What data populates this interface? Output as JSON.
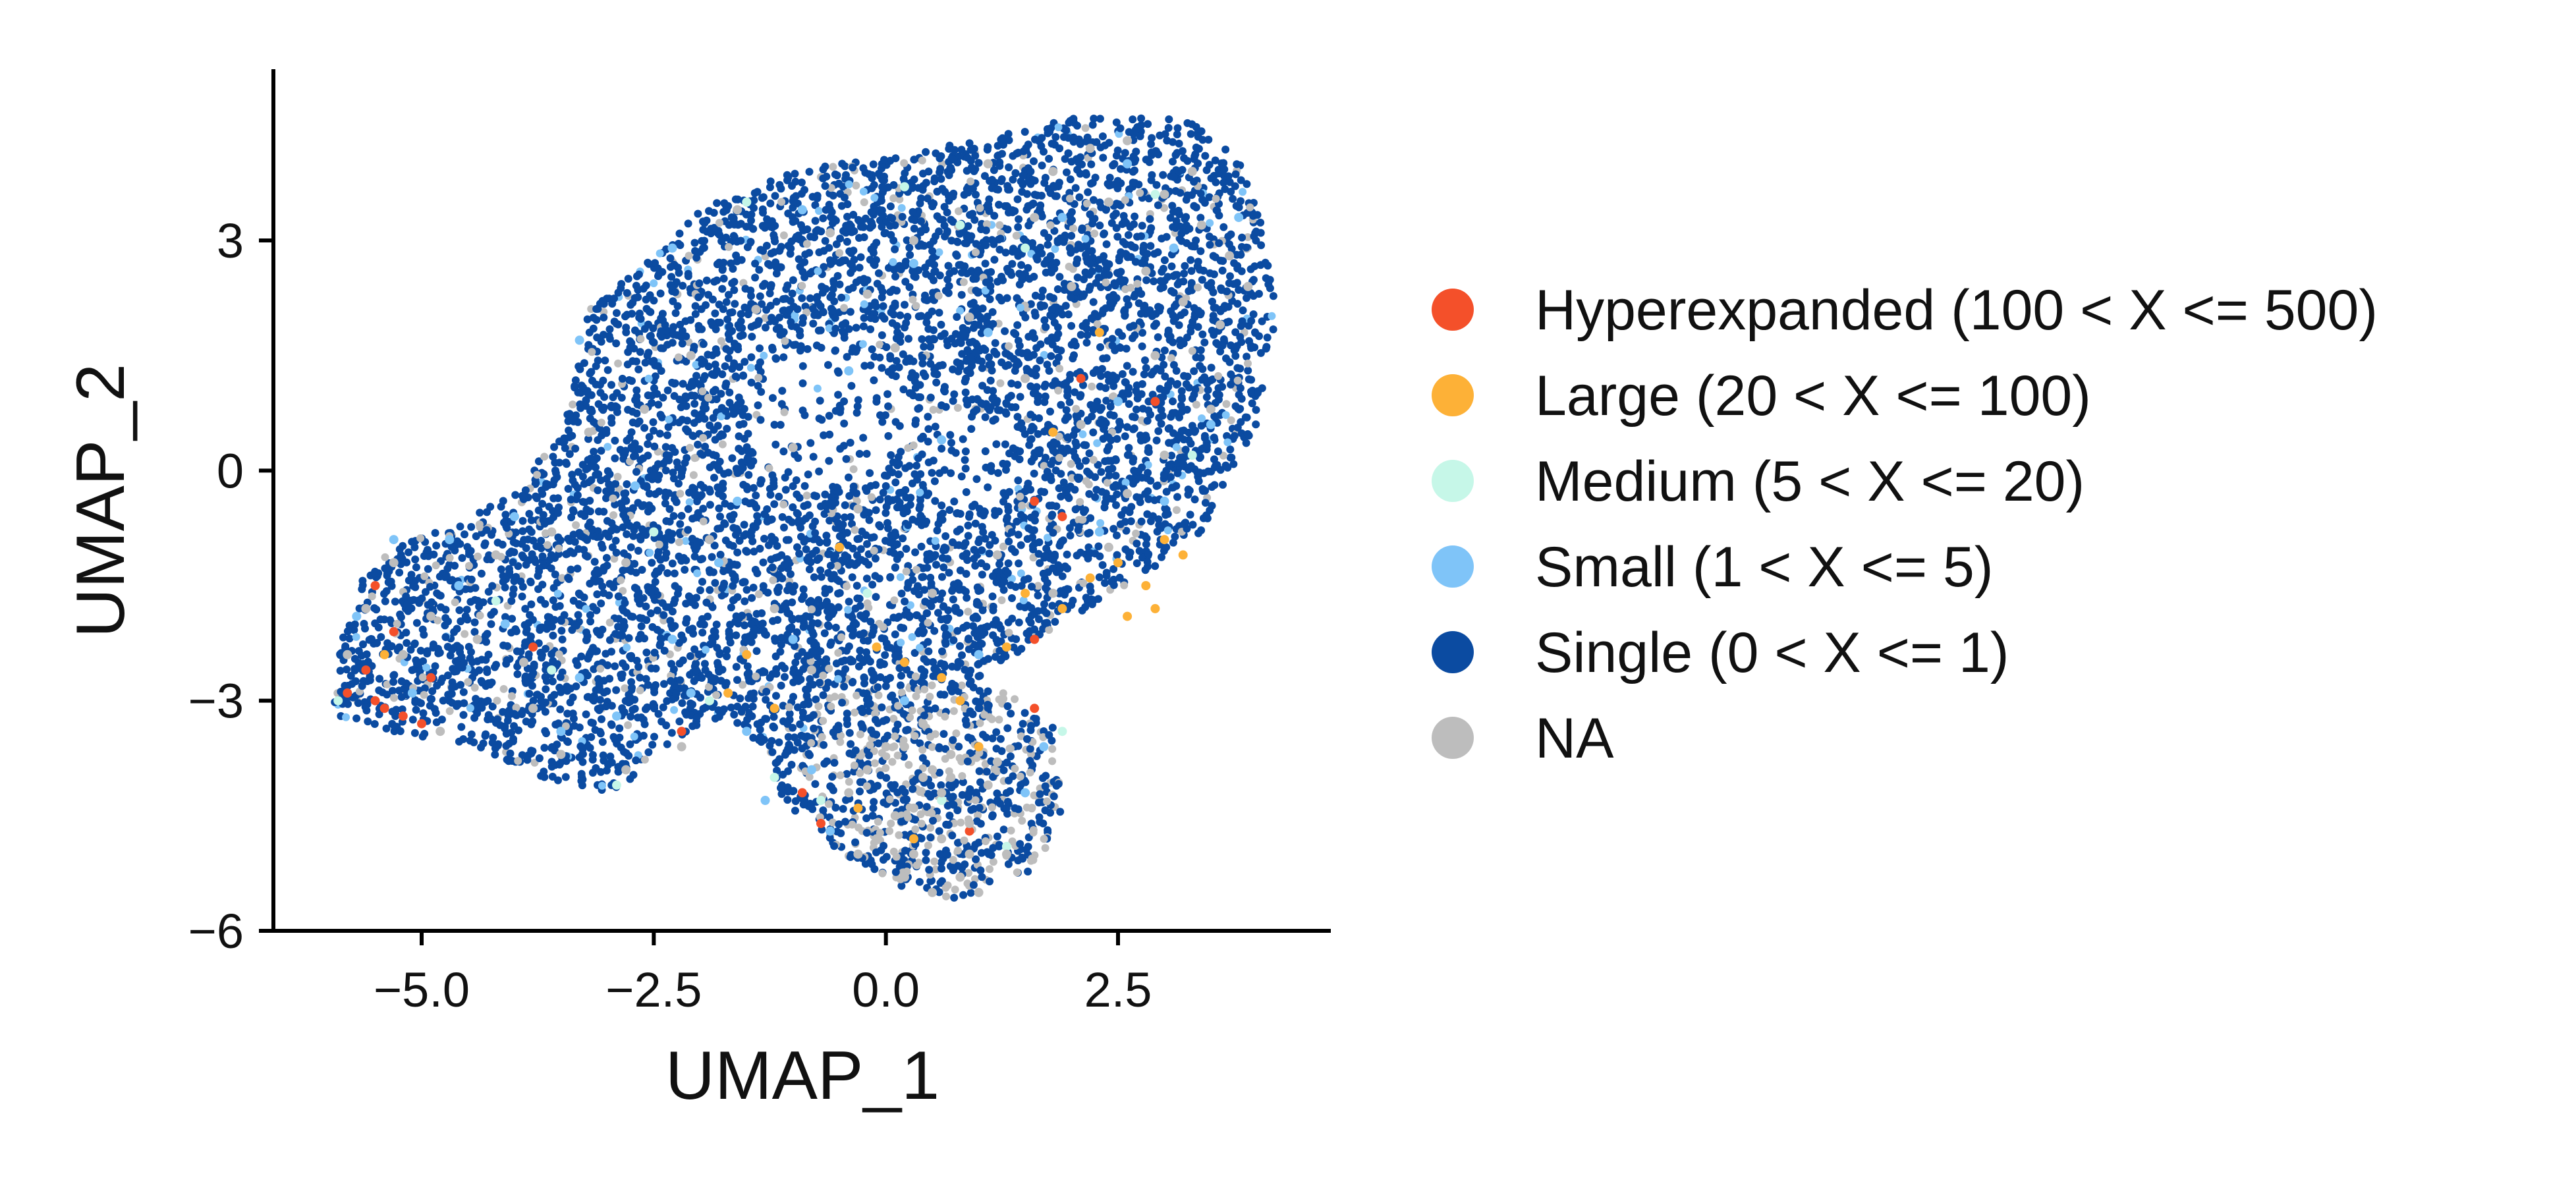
{
  "chart_data": {
    "type": "scatter",
    "title": "",
    "xlabel": "UMAP_1",
    "ylabel": "UMAP_2",
    "xlim": [
      -6.5,
      4.9
    ],
    "ylim": [
      -6.1,
      5.2
    ],
    "xticks": [
      -5.0,
      -2.5,
      0.0,
      2.5
    ],
    "xtick_labels": [
      "−5.0",
      "−2.5",
      "0.0",
      "2.5"
    ],
    "yticks": [
      -6,
      -3,
      0,
      3
    ],
    "ytick_labels": [
      "−6",
      "−3",
      "0",
      "3"
    ],
    "grid": false,
    "legend_position": "right",
    "legend": [
      {
        "label": "Hyperexpanded (100 < X <= 500)",
        "color": "#F4502A"
      },
      {
        "label": "Large (20 < X <= 100)",
        "color": "#FDB137"
      },
      {
        "label": "Medium (5 < X <= 20)",
        "color": "#C6F7E8"
      },
      {
        "label": "Small (1 < X <= 5)",
        "color": "#7FC4F8"
      },
      {
        "label": "Single (0 < X <= 1)",
        "color": "#0B4BA1"
      },
      {
        "label": "NA",
        "color": "#BDBDBD"
      }
    ],
    "series": [
      {
        "name": "Hyperexpanded (100 < X <= 500)",
        "color": "#F4502A",
        "points": [
          [
            -5.5,
            -1.5
          ],
          [
            -5.3,
            -2.1
          ],
          [
            -5.6,
            -2.6
          ],
          [
            -5.4,
            -3.1
          ],
          [
            -5.8,
            -2.9
          ],
          [
            -5.2,
            -3.2
          ],
          [
            -4.9,
            -2.7
          ],
          [
            -3.8,
            -2.3
          ],
          [
            -2.2,
            -3.4
          ],
          [
            -0.9,
            -4.2
          ],
          [
            -0.7,
            -4.6
          ],
          [
            0.9,
            -4.7
          ],
          [
            1.6,
            -3.1
          ],
          [
            1.6,
            -2.2
          ],
          [
            1.9,
            -0.6
          ],
          [
            2.1,
            1.2
          ],
          [
            2.9,
            0.9
          ],
          [
            1.6,
            -0.4
          ],
          [
            -5.5,
            -3.0
          ],
          [
            -5.0,
            -3.3
          ]
        ]
      },
      {
        "name": "Large (20 < X <= 100)",
        "color": "#FDB137",
        "points": [
          [
            2.5,
            -1.2
          ],
          [
            3.2,
            -1.1
          ],
          [
            2.8,
            -1.5
          ],
          [
            1.9,
            -1.8
          ],
          [
            1.3,
            -2.3
          ],
          [
            0.6,
            -2.7
          ],
          [
            -0.1,
            -2.3
          ],
          [
            -1.7,
            -2.9
          ],
          [
            -1.2,
            -3.1
          ],
          [
            -0.3,
            -4.4
          ],
          [
            0.3,
            -4.8
          ],
          [
            1.0,
            -3.6
          ],
          [
            -5.4,
            -2.4
          ],
          [
            2.6,
            -1.9
          ],
          [
            3.0,
            -0.9
          ],
          [
            2.2,
            -1.4
          ],
          [
            1.5,
            -1.6
          ],
          [
            -0.5,
            -1.0
          ],
          [
            1.8,
            0.5
          ],
          [
            0.8,
            -3.0
          ],
          [
            2.3,
            1.8
          ],
          [
            2.9,
            -1.8
          ],
          [
            -1.5,
            -2.4
          ],
          [
            0.2,
            -2.5
          ]
        ]
      },
      {
        "name": "Medium (5 < X <= 20)",
        "color": "#C6F7E8",
        "points": [
          [
            -5.9,
            -3.0
          ],
          [
            -1.5,
            3.5
          ],
          [
            0.8,
            3.2
          ],
          [
            1.5,
            2.9
          ],
          [
            -1.9,
            -3.0
          ],
          [
            0.6,
            -4.3
          ],
          [
            -1.2,
            -4.0
          ],
          [
            -2.5,
            -0.8
          ],
          [
            -3.6,
            -2.6
          ],
          [
            1.9,
            -3.4
          ],
          [
            2.9,
            3.6
          ],
          [
            -0.2,
            -1.6
          ],
          [
            1.3,
            -4.9
          ],
          [
            -4.2,
            -1.7
          ],
          [
            -2.9,
            -4.1
          ],
          [
            0.2,
            3.7
          ],
          [
            3.3,
            0.2
          ],
          [
            -0.7,
            -4.3
          ]
        ]
      },
      {
        "name": "NA",
        "color": "#BDBDBD",
        "points": [
          [
            0.2,
            -3.6
          ],
          [
            0.4,
            -4.0
          ],
          [
            0.1,
            -4.5
          ],
          [
            0.6,
            -4.2
          ],
          [
            0.3,
            -5.0
          ],
          [
            0.8,
            -5.3
          ],
          [
            0.5,
            -5.5
          ],
          [
            0.9,
            -4.6
          ],
          [
            -0.2,
            -3.9
          ],
          [
            0.7,
            -3.7
          ],
          [
            1.1,
            -4.1
          ],
          [
            -0.1,
            -4.8
          ],
          [
            0.4,
            -3.3
          ],
          [
            0.0,
            -3.6
          ],
          [
            1.3,
            -5.0
          ],
          [
            0.2,
            -5.3
          ],
          [
            0.6,
            -4.8
          ],
          [
            1.2,
            -3.8
          ],
          [
            -0.4,
            -4.2
          ],
          [
            0.9,
            -5.0
          ],
          [
            0.5,
            -3.9
          ],
          [
            0.3,
            -4.4
          ],
          [
            1.0,
            -5.5
          ],
          [
            -0.3,
            -5.0
          ],
          [
            0.7,
            -4.0
          ],
          [
            2.2,
            4.2
          ],
          [
            2.6,
            4.3
          ],
          [
            1.8,
            3.9
          ],
          [
            3.0,
            3.6
          ],
          [
            3.4,
            3.2
          ],
          [
            2.4,
            3.5
          ],
          [
            3.7,
            2.8
          ],
          [
            3.2,
            2.2
          ],
          [
            2.8,
            2.6
          ],
          [
            1.6,
            3.3
          ],
          [
            3.6,
            1.9
          ],
          [
            2.9,
            1.5
          ],
          [
            3.5,
            0.8
          ],
          [
            2.0,
            2.4
          ],
          [
            1.5,
            1.2
          ],
          [
            3.0,
            0.2
          ],
          [
            2.6,
            -0.3
          ],
          [
            2.4,
            -1.0
          ],
          [
            1.8,
            -1.6
          ],
          [
            -5.6,
            -1.8
          ],
          [
            -5.2,
            -2.4
          ],
          [
            -5.8,
            -2.4
          ],
          [
            -4.9,
            -1.9
          ],
          [
            -4.8,
            -3.4
          ],
          [
            -3.8,
            -3.1
          ],
          [
            -3.5,
            -3.7
          ],
          [
            -2.8,
            -3.9
          ],
          [
            -2.2,
            -3.6
          ],
          [
            -3.9,
            -2.5
          ],
          [
            -4.4,
            -2.2
          ],
          [
            -2.6,
            0.8
          ],
          [
            -2.1,
            1.5
          ],
          [
            -1.6,
            3.4
          ],
          [
            -0.6,
            3.1
          ],
          [
            0.3,
            3.0
          ],
          [
            0.1,
            1.6
          ],
          [
            -1.0,
            0.3
          ],
          [
            -0.3,
            -0.5
          ],
          [
            -1.9,
            -0.9
          ],
          [
            -2.8,
            -1.2
          ],
          [
            -3.2,
            0.5
          ],
          [
            -1.4,
            2.1
          ],
          [
            0.9,
            2.0
          ],
          [
            0.5,
            -1.6
          ],
          [
            1.2,
            -1.1
          ],
          [
            -0.8,
            -2.6
          ],
          [
            -5.3,
            -1.2
          ],
          [
            -4.2,
            -1.1
          ],
          [
            2.1,
            0.6
          ],
          [
            3.3,
            3.9
          ],
          [
            3.9,
            2.4
          ],
          [
            1.1,
            4.0
          ],
          [
            -0.2,
            2.3
          ],
          [
            -3.6,
            -0.8
          ],
          [
            -1.2,
            -1.8
          ]
        ]
      },
      {
        "name": "Small (1 < X <= 5)",
        "color": "#7FC4F8",
        "points": [
          [
            -5.7,
            -1.9
          ],
          [
            -5.1,
            -2.9
          ],
          [
            -4.6,
            -1.5
          ],
          [
            -4.1,
            -2.0
          ],
          [
            -3.3,
            -2.7
          ],
          [
            -2.9,
            -3.2
          ],
          [
            -2.3,
            -2.2
          ],
          [
            -1.8,
            -1.2
          ],
          [
            -1.5,
            -3.4
          ],
          [
            -0.8,
            -3.9
          ],
          [
            -0.6,
            -4.7
          ],
          [
            1.5,
            -4.2
          ],
          [
            1.7,
            -3.6
          ],
          [
            2.3,
            -0.8
          ],
          [
            3.0,
            -0.4
          ],
          [
            3.5,
            0.6
          ],
          [
            2.5,
            0.9
          ],
          [
            1.1,
            1.8
          ],
          [
            0.3,
            2.7
          ],
          [
            -0.9,
            3.4
          ],
          [
            -2.3,
            2.9
          ],
          [
            -3.3,
            1.7
          ],
          [
            -2.7,
            -0.2
          ],
          [
            -4.0,
            -0.6
          ],
          [
            -4.7,
            -0.9
          ],
          [
            1.9,
            3.3
          ],
          [
            2.6,
            4.0
          ],
          [
            3.8,
            3.3
          ],
          [
            3.1,
            2.9
          ],
          [
            0.6,
            0.4
          ],
          [
            -0.4,
            1.3
          ],
          [
            -1.6,
            -0.4
          ],
          [
            -1.0,
            -2.2
          ],
          [
            0.2,
            -3.0
          ],
          [
            1.0,
            -2.4
          ],
          [
            -3.5,
            -3.4
          ],
          [
            -5.3,
            -0.9
          ],
          [
            -2.1,
            -2.9
          ],
          [
            -1.3,
            -4.3
          ]
        ]
      }
    ],
    "point_cloud_note": ""
  }
}
